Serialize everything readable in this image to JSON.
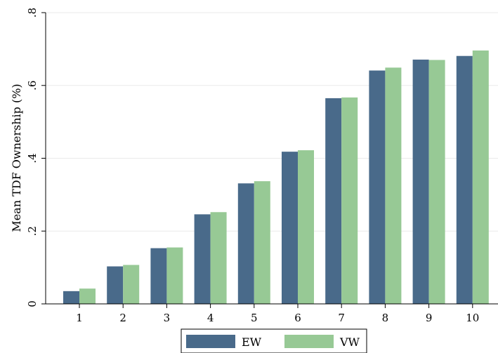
{
  "chart_data": {
    "type": "bar",
    "title": "",
    "xlabel": "",
    "ylabel": "Mean TDF Ownership (%)",
    "categories": [
      "1",
      "2",
      "3",
      "4",
      "5",
      "6",
      "7",
      "8",
      "9",
      "10"
    ],
    "series": [
      {
        "name": "EW",
        "color": "#496a8a",
        "values": [
          0.035,
          0.103,
          0.153,
          0.246,
          0.331,
          0.418,
          0.565,
          0.641,
          0.671,
          0.681
        ]
      },
      {
        "name": "VW",
        "color": "#97c995",
        "values": [
          0.042,
          0.107,
          0.155,
          0.252,
          0.337,
          0.422,
          0.567,
          0.649,
          0.67,
          0.696
        ]
      }
    ],
    "ylim": [
      0,
      0.8
    ],
    "yticks": [
      0,
      0.2,
      0.4,
      0.6,
      0.8
    ],
    "ytick_labels": [
      "0",
      ".2",
      ".4",
      ".6",
      ".8"
    ],
    "grid": true,
    "legend_position": "bottom"
  }
}
